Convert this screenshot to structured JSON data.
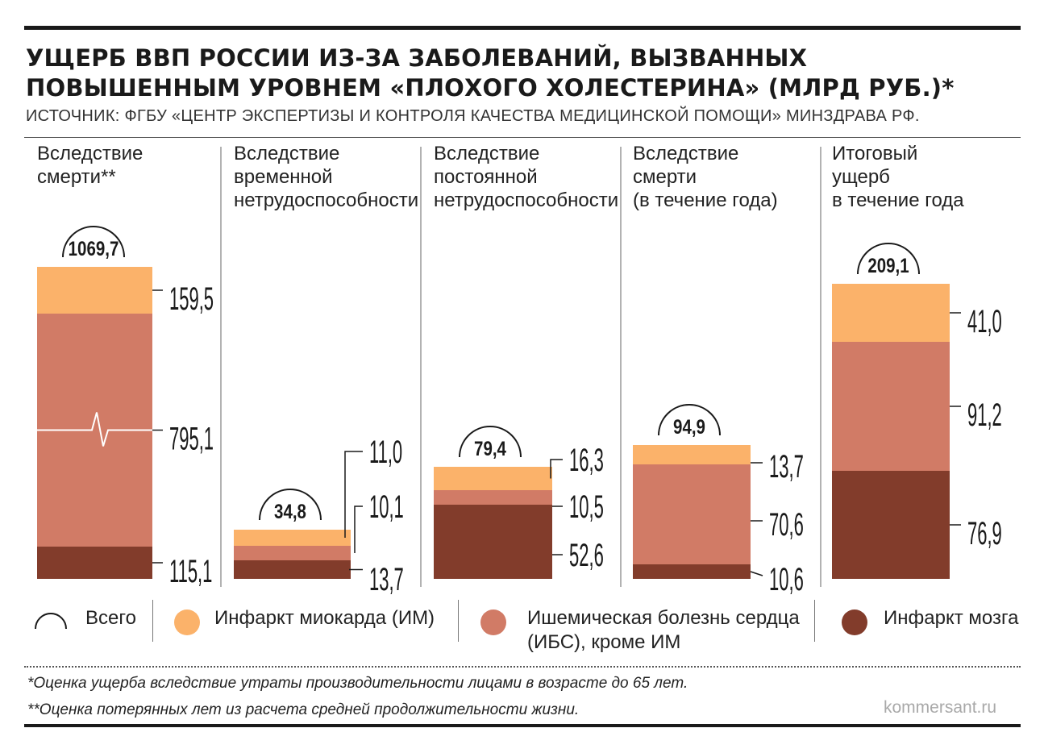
{
  "title_line1": "УЩЕРБ ВВП РОССИИ ИЗ-ЗА ЗАБОЛЕВАНИЙ, ВЫЗВАННЫХ",
  "title_line2": "ПОВЫШЕННЫМ УРОВНЕМ «ПЛОХОГО ХОЛЕСТЕРИНА» (МЛРД РУБ.)*",
  "source": "ИСТОЧНИК: ФГБУ «ЦЕНТР ЭКСПЕРТИЗЫ И КОНТРОЛЯ КАЧЕСТВА МЕДИЦИНСКОЙ ПОМОЩИ» МИНЗДРАВА РФ.",
  "colors": {
    "mi": "#fbb26a",
    "ihd": "#d17b66",
    "stroke": "#823c2b"
  },
  "chart_data": {
    "type": "bar",
    "stacked": true,
    "panels": [
      {
        "label_lines": [
          "Вследствие",
          "смерти**"
        ],
        "total": "1069,7",
        "values": {
          "stroke": 115.1,
          "ihd": 795.1,
          "mi": 159.5
        },
        "labels": {
          "stroke": "115,1",
          "ihd": "795,1",
          "mi": "159,5"
        },
        "axis_break": true
      },
      {
        "label_lines": [
          "Вследствие",
          "временной",
          "нетрудоспособности"
        ],
        "total": "34,8",
        "values": {
          "stroke": 13.7,
          "ihd": 10.1,
          "mi": 11.0
        },
        "labels": {
          "stroke": "13,7",
          "ihd": "10,1",
          "mi": "11,0"
        }
      },
      {
        "label_lines": [
          "Вследствие",
          "постоянной",
          "нетрудоспособности"
        ],
        "total": "79,4",
        "values": {
          "stroke": 52.6,
          "ihd": 10.5,
          "mi": 16.3
        },
        "labels": {
          "stroke": "52,6",
          "ihd": "10,5",
          "mi": "16,3"
        }
      },
      {
        "label_lines": [
          "Вследствие",
          "смерти",
          "(в течение года)"
        ],
        "total": "94,9",
        "values": {
          "stroke": 10.6,
          "ihd": 70.6,
          "mi": 13.7
        },
        "labels": {
          "stroke": "10,6",
          "ihd": "70,6",
          "mi": "13,7"
        }
      },
      {
        "label_lines": [
          "Итоговый",
          "ущерб",
          "в течение года"
        ],
        "total": "209,1",
        "values": {
          "stroke": 76.9,
          "ihd": 91.2,
          "mi": 41.0
        },
        "labels": {
          "stroke": "76,9",
          "ihd": "91,2",
          "mi": "41,0"
        }
      }
    ]
  },
  "legend": {
    "total": "Всего",
    "mi": "Инфаркт миокарда (ИМ)",
    "ihd_line1": "Ишемическая болезнь сердца",
    "ihd_line2": "(ИБС), кроме ИМ",
    "stroke": "Инфаркт мозга"
  },
  "footnote1": "*Оценка ущерба вследствие утраты производительности лицами в возрасте до 65 лет.",
  "footnote2": "**Оценка потерянных лет из расчета средней продолжительности жизни.",
  "brand": "kommersant.ru"
}
